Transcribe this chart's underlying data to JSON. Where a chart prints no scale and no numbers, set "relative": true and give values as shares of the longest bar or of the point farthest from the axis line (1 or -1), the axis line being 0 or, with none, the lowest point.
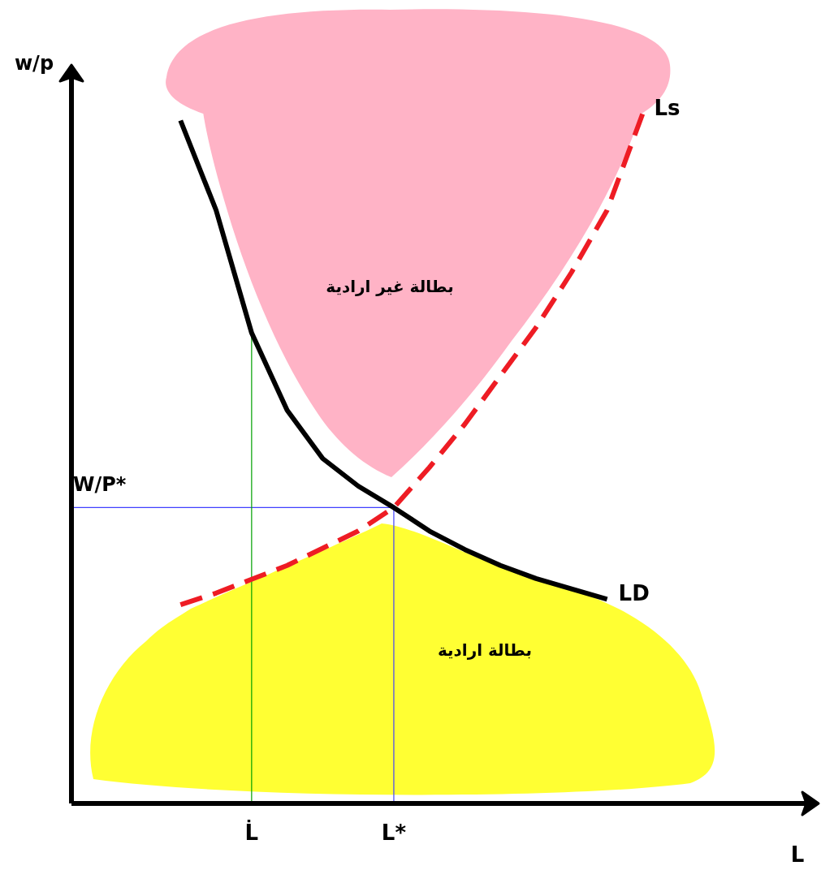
{
  "chart_data": {
    "type": "line",
    "relative": true,
    "marker": "none",
    "categories": [
      null,
      null,
      "L̇",
      null,
      null,
      null,
      "L*",
      null,
      null,
      null,
      null,
      null,
      null,
      null
    ],
    "ref_lines": [
      {
        "axis": "y",
        "value": 0.429,
        "label": "W/P*",
        "color": "#4040ff"
      },
      {
        "axis": "x",
        "value": "L*",
        "color": "#4040ff"
      },
      {
        "axis": "x",
        "value": "L̇",
        "color": "#00a000"
      }
    ],
    "annotations": [
      "بطالة غير ارادية",
      "بطالة ارادية",
      "w/p",
      "L"
    ],
    "series": [
      {
        "name": "LD",
        "color": "#000000",
        "values": [
          0.99,
          0.86,
          0.682,
          0.57,
          0.5,
          0.46,
          0.429,
          0.395,
          0.368,
          0.345,
          0.326,
          0.311,
          0.296,
          null
        ]
      },
      {
        "name": "Ls",
        "color": "#ee1c24",
        "line_style": "dashed",
        "values": [
          0.288,
          0.305,
          0.325,
          0.345,
          0.37,
          0.395,
          0.429,
          0.487,
          0.55,
          0.62,
          0.69,
          0.77,
          0.86,
          1.0
        ]
      }
    ]
  }
}
